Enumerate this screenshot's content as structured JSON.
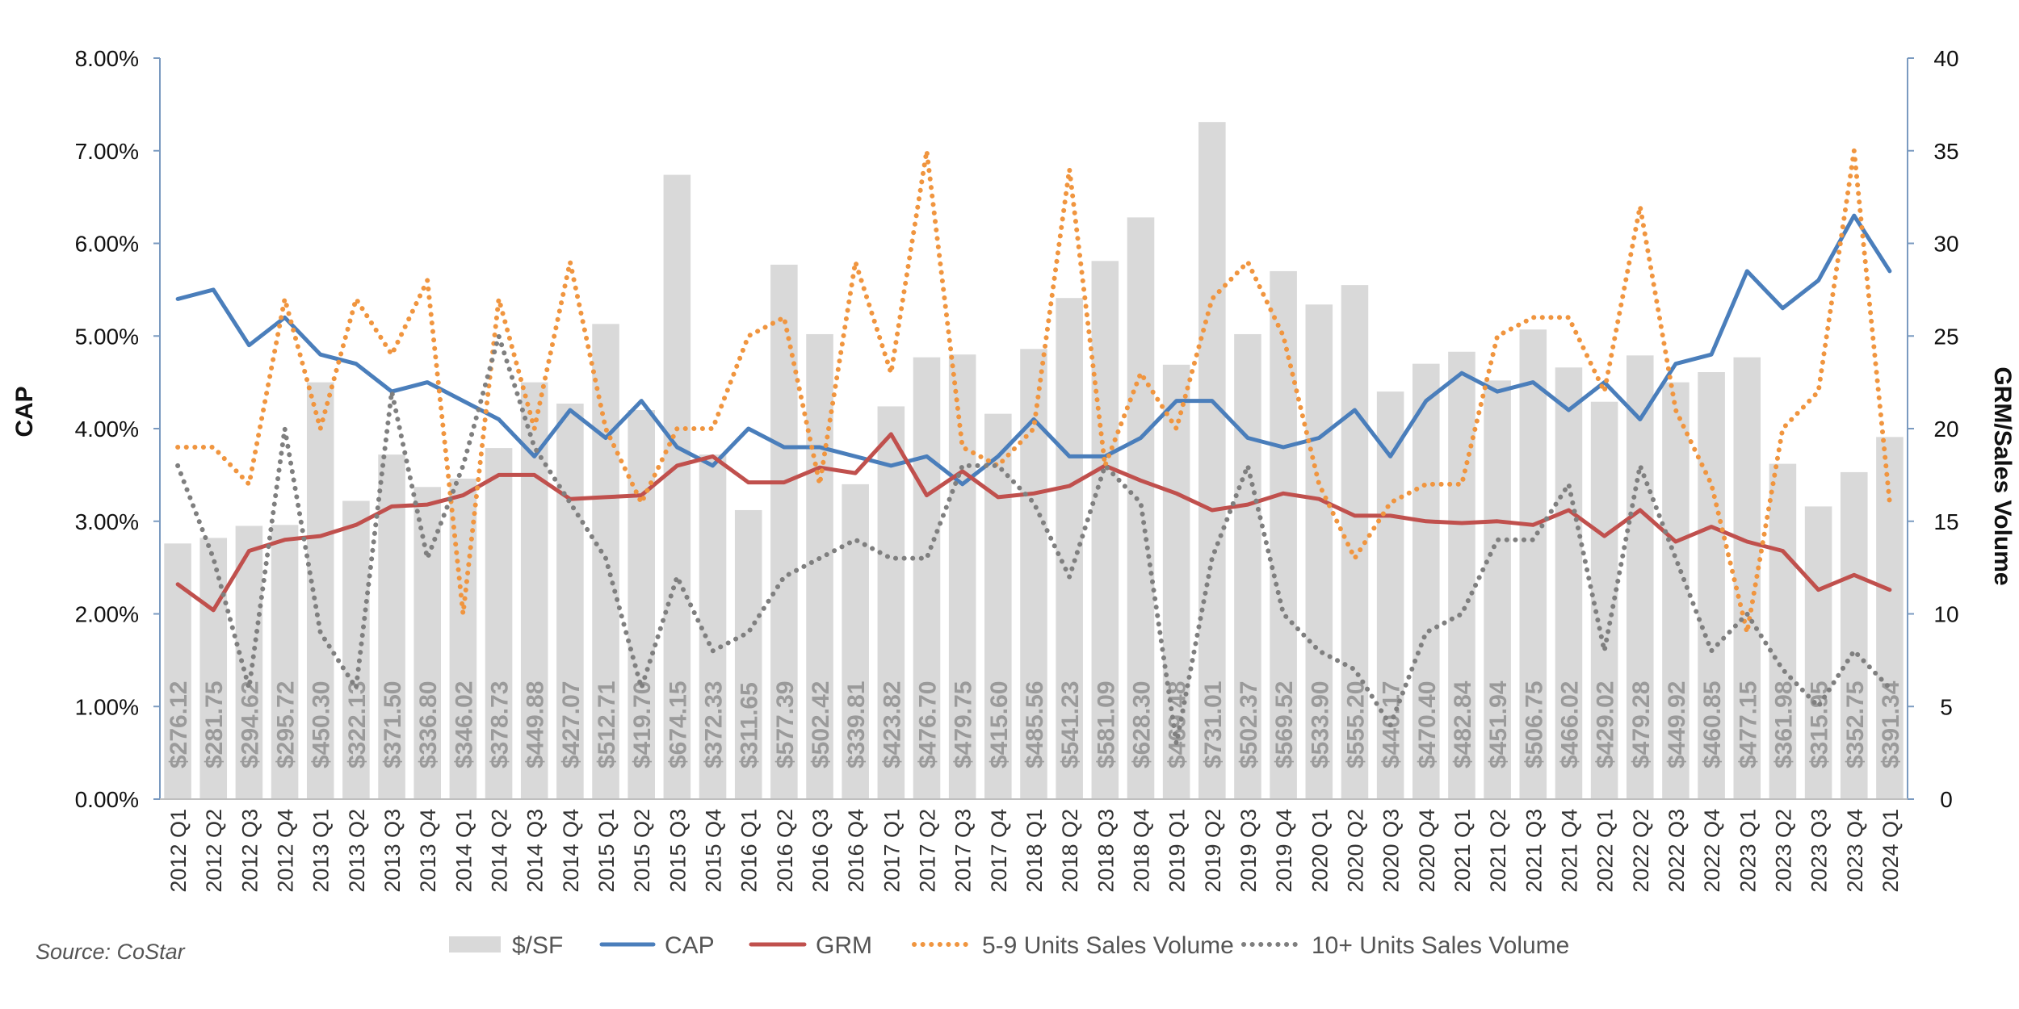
{
  "chart_data": {
    "type": "bar",
    "source": "Source: CoStar",
    "ylabel": "CAP",
    "y2label": "GRM/Sales Volume",
    "ylim": [
      0,
      0.08
    ],
    "y2lim": [
      0,
      40
    ],
    "yticks": [
      "0.00%",
      "1.00%",
      "2.00%",
      "3.00%",
      "4.00%",
      "5.00%",
      "6.00%",
      "7.00%",
      "8.00%"
    ],
    "y2ticks": [
      "0",
      "5",
      "10",
      "15",
      "20",
      "25",
      "30",
      "35",
      "40"
    ],
    "categories": [
      "2012 Q1",
      "2012 Q2",
      "2012 Q3",
      "2012 Q4",
      "2013 Q1",
      "2013 Q2",
      "2013 Q3",
      "2013 Q4",
      "2014 Q1",
      "2014 Q2",
      "2014 Q3",
      "2014 Q4",
      "2015 Q1",
      "2015 Q2",
      "2015 Q3",
      "2015 Q4",
      "2016 Q1",
      "2016 Q2",
      "2016 Q3",
      "2016 Q4",
      "2017 Q1",
      "2017 Q2",
      "2017 Q3",
      "2017 Q4",
      "2018 Q1",
      "2018 Q2",
      "2018 Q3",
      "2018 Q4",
      "2019 Q1",
      "2019 Q2",
      "2019 Q3",
      "2019 Q4",
      "2020 Q1",
      "2020 Q2",
      "2020 Q3",
      "2020 Q4",
      "2021 Q1",
      "2021 Q2",
      "2021 Q3",
      "2021 Q4",
      "2022 Q1",
      "2022 Q2",
      "2022 Q3",
      "2022 Q4",
      "2023 Q1",
      "2023 Q2",
      "2023 Q3",
      "2023 Q4",
      "2024 Q1"
    ],
    "bar_labels": [
      "$276.12",
      "$281.75",
      "$294.62",
      "$295.72",
      "$450.30",
      "$322.13",
      "$371.50",
      "$336.80",
      "$346.02",
      "$378.73",
      "$449.88",
      "$427.07",
      "$512.71",
      "$419.70",
      "$674.15",
      "$372.33",
      "$311.65",
      "$577.39",
      "$502.42",
      "$339.81",
      "$423.82",
      "$476.70",
      "$479.75",
      "$415.60",
      "$485.56",
      "$541.23",
      "$581.09",
      "$628.30",
      "$469.48",
      "$731.01",
      "$502.37",
      "$569.52",
      "$533.90",
      "$555.20",
      "$440.17",
      "$470.40",
      "$482.84",
      "$451.94",
      "$506.75",
      "$466.02",
      "$429.02",
      "$479.28",
      "$449.92",
      "$460.85",
      "$477.15",
      "$361.98",
      "$315.95",
      "$352.75",
      "$391.34"
    ],
    "series": [
      {
        "name": "$/SF",
        "type": "bar",
        "axis": "cap",
        "color": "#d9d9d9",
        "values": [
          0.0276,
          0.0282,
          0.0295,
          0.0296,
          0.045,
          0.0322,
          0.0372,
          0.0337,
          0.0346,
          0.0379,
          0.045,
          0.0427,
          0.0513,
          0.042,
          0.0674,
          0.0372,
          0.0312,
          0.0577,
          0.0502,
          0.034,
          0.0424,
          0.0477,
          0.048,
          0.0416,
          0.0486,
          0.0541,
          0.0581,
          0.0628,
          0.0469,
          0.0731,
          0.0502,
          0.057,
          0.0534,
          0.0555,
          0.044,
          0.047,
          0.0483,
          0.0452,
          0.0507,
          0.0466,
          0.0429,
          0.0479,
          0.045,
          0.0461,
          0.0477,
          0.0362,
          0.0316,
          0.0353,
          0.0391
        ]
      },
      {
        "name": "CAP",
        "type": "line",
        "axis": "cap",
        "color": "#4a7ebb",
        "style": "solid",
        "values": [
          0.054,
          0.055,
          0.049,
          0.052,
          0.048,
          0.047,
          0.044,
          0.045,
          0.043,
          0.041,
          0.037,
          0.042,
          0.039,
          0.043,
          0.038,
          0.036,
          0.04,
          0.038,
          0.038,
          0.037,
          0.036,
          0.037,
          0.034,
          0.037,
          0.041,
          0.037,
          0.037,
          0.039,
          0.043,
          0.043,
          0.039,
          0.038,
          0.039,
          0.042,
          0.037,
          0.043,
          0.046,
          0.044,
          0.045,
          0.042,
          0.045,
          0.041,
          0.047,
          0.048,
          0.057,
          0.053,
          0.056,
          0.063,
          0.057
        ]
      },
      {
        "name": "GRM",
        "type": "line",
        "axis": "grm",
        "color": "#c0504d",
        "style": "solid",
        "values": [
          11.6,
          10.2,
          13.4,
          14.0,
          14.2,
          14.8,
          15.8,
          15.9,
          16.4,
          17.5,
          17.5,
          16.2,
          16.3,
          16.4,
          18.0,
          18.5,
          17.1,
          17.1,
          17.9,
          17.6,
          19.7,
          16.4,
          17.7,
          16.3,
          16.5,
          16.9,
          18.0,
          17.2,
          16.5,
          15.6,
          15.9,
          16.5,
          16.2,
          15.3,
          15.3,
          15.0,
          14.9,
          15.0,
          14.8,
          15.6,
          14.2,
          15.6,
          13.9,
          14.7,
          13.9,
          13.4,
          11.3,
          12.1,
          11.3
        ]
      },
      {
        "name": "5-9 Units Sales Volume",
        "type": "line",
        "axis": "grm",
        "color": "#f0953f",
        "style": "dotted",
        "values": [
          19,
          19,
          17,
          27,
          20,
          27,
          24,
          28,
          10,
          27,
          20,
          29,
          20,
          16,
          20,
          20,
          25,
          26,
          17,
          29,
          23,
          35,
          19,
          18,
          20,
          34,
          18,
          23,
          20,
          27,
          29,
          25,
          17,
          13,
          16,
          17,
          17,
          25,
          26,
          26,
          22,
          32,
          21,
          17,
          9,
          20,
          22,
          35,
          16
        ]
      },
      {
        "name": "10+ Units Sales Volume",
        "type": "line",
        "axis": "grm",
        "color": "#7f7f7f",
        "style": "dotted",
        "values": [
          18,
          13,
          6,
          20,
          9,
          6,
          22,
          13,
          18,
          25,
          19,
          16,
          13,
          6,
          12,
          8,
          9,
          12,
          13,
          14,
          13,
          13,
          18,
          18,
          16,
          12,
          18,
          16,
          3,
          13,
          18,
          10,
          8,
          7,
          4,
          9,
          10,
          14,
          14,
          17,
          8,
          18,
          13,
          8,
          10,
          7,
          5,
          8,
          6
        ]
      }
    ]
  }
}
